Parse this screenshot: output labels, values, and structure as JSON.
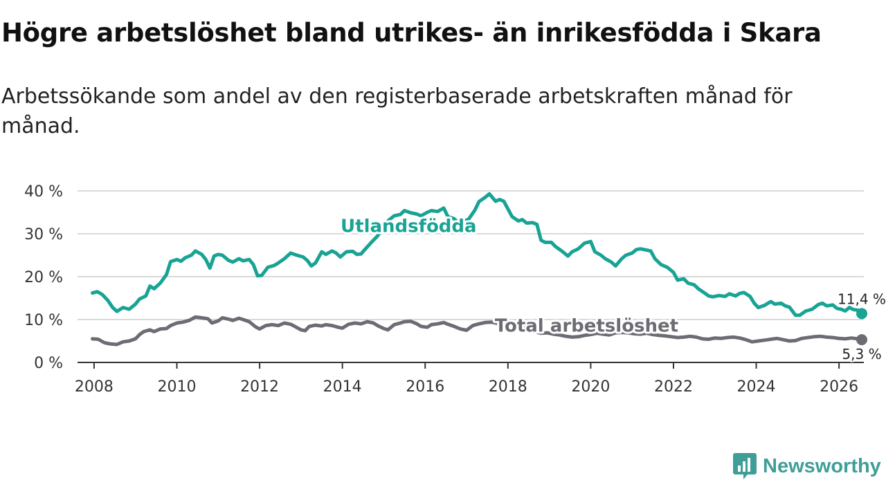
{
  "title": "Högre arbetslöshet bland utrikes- än inrikesfödda i Skara",
  "subtitle": "Arbetssökande som andel av den registerbaserade arbetskraften månad för månad.",
  "brand": {
    "name": "Newsworthy"
  },
  "colors": {
    "foreign_born": "#18a394",
    "total": "#6d6b73",
    "grid": "#d9d9d9",
    "axis": "#333333"
  },
  "chart_data": {
    "type": "line",
    "title": "Högre arbetslöshet bland utrikes- än inrikesfödda i Skara",
    "xlabel": "",
    "ylabel": "",
    "xlim": [
      2007.6,
      2026.6
    ],
    "ylim": [
      0,
      40
    ],
    "grid": true,
    "x_ticks": [
      2008,
      2010,
      2012,
      2014,
      2016,
      2018,
      2020,
      2022,
      2024,
      2026
    ],
    "x_tick_labels": [
      "2008",
      "2010",
      "2012",
      "2014",
      "2016",
      "2018",
      "2020",
      "2022",
      "2024",
      "2026"
    ],
    "y_ticks": [
      0,
      10,
      20,
      30,
      40
    ],
    "y_tick_labels": [
      "0 %",
      "10 %",
      "20 %",
      "30 %",
      "40 %"
    ],
    "series": [
      {
        "name": "Utlandsfödda",
        "color": "#18a394",
        "end_label": "11,4 %",
        "points": [
          [
            2007.96,
            16.2
          ],
          [
            2008.08,
            16.5
          ],
          [
            2008.2,
            15.8
          ],
          [
            2008.33,
            14.5
          ],
          [
            2008.45,
            12.8
          ],
          [
            2008.55,
            11.9
          ],
          [
            2008.7,
            12.8
          ],
          [
            2008.85,
            12.4
          ],
          [
            2009.0,
            13.6
          ],
          [
            2009.1,
            14.8
          ],
          [
            2009.25,
            15.5
          ],
          [
            2009.35,
            17.8
          ],
          [
            2009.45,
            17.2
          ],
          [
            2009.6,
            18.5
          ],
          [
            2009.75,
            20.5
          ],
          [
            2009.85,
            23.5
          ],
          [
            2010.0,
            24.0
          ],
          [
            2010.1,
            23.6
          ],
          [
            2010.2,
            24.4
          ],
          [
            2010.35,
            25.0
          ],
          [
            2010.45,
            26.0
          ],
          [
            2010.6,
            25.2
          ],
          [
            2010.7,
            24.0
          ],
          [
            2010.8,
            22.0
          ],
          [
            2010.9,
            24.8
          ],
          [
            2011.0,
            25.2
          ],
          [
            2011.1,
            25.0
          ],
          [
            2011.25,
            23.8
          ],
          [
            2011.35,
            23.4
          ],
          [
            2011.5,
            24.2
          ],
          [
            2011.6,
            23.7
          ],
          [
            2011.75,
            24.0
          ],
          [
            2011.85,
            22.8
          ],
          [
            2011.95,
            20.2
          ],
          [
            2012.05,
            20.3
          ],
          [
            2012.2,
            22.2
          ],
          [
            2012.35,
            22.6
          ],
          [
            2012.45,
            23.2
          ],
          [
            2012.6,
            24.2
          ],
          [
            2012.75,
            25.5
          ],
          [
            2012.9,
            25.0
          ],
          [
            2013.05,
            24.6
          ],
          [
            2013.15,
            23.8
          ],
          [
            2013.25,
            22.5
          ],
          [
            2013.35,
            23.2
          ],
          [
            2013.5,
            25.8
          ],
          [
            2013.6,
            25.2
          ],
          [
            2013.75,
            26.0
          ],
          [
            2013.85,
            25.5
          ],
          [
            2013.95,
            24.6
          ],
          [
            2014.1,
            25.8
          ],
          [
            2014.25,
            25.9
          ],
          [
            2014.35,
            25.2
          ],
          [
            2014.45,
            25.3
          ],
          [
            2014.55,
            26.4
          ],
          [
            2014.7,
            28.0
          ],
          [
            2014.85,
            29.5
          ],
          [
            2015.0,
            31.5
          ],
          [
            2015.1,
            33.0
          ],
          [
            2015.25,
            34.2
          ],
          [
            2015.4,
            34.5
          ],
          [
            2015.5,
            35.4
          ],
          [
            2015.65,
            34.9
          ],
          [
            2015.8,
            34.6
          ],
          [
            2015.9,
            34.2
          ],
          [
            2016.05,
            35.0
          ],
          [
            2016.15,
            35.4
          ],
          [
            2016.3,
            35.2
          ],
          [
            2016.45,
            36.0
          ],
          [
            2016.55,
            34.0
          ],
          [
            2016.7,
            33.5
          ],
          [
            2016.8,
            32.6
          ],
          [
            2016.95,
            33.0
          ],
          [
            2017.05,
            33.4
          ],
          [
            2017.2,
            35.5
          ],
          [
            2017.3,
            37.5
          ],
          [
            2017.45,
            38.5
          ],
          [
            2017.55,
            39.3
          ],
          [
            2017.7,
            37.6
          ],
          [
            2017.8,
            38.0
          ],
          [
            2017.9,
            37.6
          ],
          [
            2018.0,
            35.8
          ],
          [
            2018.1,
            34.0
          ],
          [
            2018.25,
            33.0
          ],
          [
            2018.35,
            33.3
          ],
          [
            2018.45,
            32.5
          ],
          [
            2018.6,
            32.6
          ],
          [
            2018.7,
            32.2
          ],
          [
            2018.8,
            28.5
          ],
          [
            2018.9,
            28.0
          ],
          [
            2019.05,
            28.0
          ],
          [
            2019.15,
            27.0
          ],
          [
            2019.3,
            26.0
          ],
          [
            2019.45,
            24.8
          ],
          [
            2019.55,
            25.8
          ],
          [
            2019.7,
            26.5
          ],
          [
            2019.85,
            27.8
          ],
          [
            2020.0,
            28.2
          ],
          [
            2020.1,
            25.8
          ],
          [
            2020.25,
            25.0
          ],
          [
            2020.35,
            24.2
          ],
          [
            2020.5,
            23.4
          ],
          [
            2020.6,
            22.5
          ],
          [
            2020.75,
            24.2
          ],
          [
            2020.85,
            25.0
          ],
          [
            2021.0,
            25.5
          ],
          [
            2021.1,
            26.3
          ],
          [
            2021.2,
            26.5
          ],
          [
            2021.35,
            26.2
          ],
          [
            2021.45,
            26.0
          ],
          [
            2021.55,
            24.2
          ],
          [
            2021.7,
            22.8
          ],
          [
            2021.85,
            22.2
          ],
          [
            2022.0,
            21.0
          ],
          [
            2022.1,
            19.2
          ],
          [
            2022.25,
            19.5
          ],
          [
            2022.35,
            18.5
          ],
          [
            2022.5,
            18.1
          ],
          [
            2022.6,
            17.2
          ],
          [
            2022.75,
            16.2
          ],
          [
            2022.85,
            15.5
          ],
          [
            2022.95,
            15.3
          ],
          [
            2023.1,
            15.6
          ],
          [
            2023.25,
            15.4
          ],
          [
            2023.35,
            16.0
          ],
          [
            2023.5,
            15.5
          ],
          [
            2023.6,
            16.1
          ],
          [
            2023.7,
            16.3
          ],
          [
            2023.85,
            15.4
          ],
          [
            2023.95,
            13.8
          ],
          [
            2024.05,
            12.8
          ],
          [
            2024.2,
            13.3
          ],
          [
            2024.35,
            14.2
          ],
          [
            2024.45,
            13.6
          ],
          [
            2024.6,
            13.8
          ],
          [
            2024.7,
            13.2
          ],
          [
            2024.8,
            12.9
          ],
          [
            2024.95,
            11.0
          ],
          [
            2025.05,
            11.0
          ],
          [
            2025.2,
            12.0
          ],
          [
            2025.35,
            12.4
          ],
          [
            2025.5,
            13.5
          ],
          [
            2025.6,
            13.8
          ],
          [
            2025.7,
            13.2
          ],
          [
            2025.85,
            13.4
          ],
          [
            2025.95,
            12.6
          ],
          [
            2026.05,
            12.4
          ],
          [
            2026.15,
            12.0
          ],
          [
            2026.25,
            12.8
          ],
          [
            2026.35,
            12.3
          ],
          [
            2026.45,
            12.2
          ],
          [
            2026.55,
            11.4
          ]
        ]
      },
      {
        "name": "Total arbetslöshet",
        "color": "#6d6b73",
        "end_label": "5,3 %",
        "points": [
          [
            2007.96,
            5.5
          ],
          [
            2008.1,
            5.4
          ],
          [
            2008.25,
            4.6
          ],
          [
            2008.4,
            4.3
          ],
          [
            2008.55,
            4.2
          ],
          [
            2008.7,
            4.8
          ],
          [
            2008.85,
            5.0
          ],
          [
            2009.0,
            5.5
          ],
          [
            2009.1,
            6.5
          ],
          [
            2009.2,
            7.2
          ],
          [
            2009.35,
            7.6
          ],
          [
            2009.45,
            7.2
          ],
          [
            2009.6,
            7.8
          ],
          [
            2009.75,
            7.9
          ],
          [
            2009.85,
            8.6
          ],
          [
            2010.0,
            9.2
          ],
          [
            2010.15,
            9.4
          ],
          [
            2010.3,
            9.8
          ],
          [
            2010.45,
            10.6
          ],
          [
            2010.6,
            10.4
          ],
          [
            2010.75,
            10.2
          ],
          [
            2010.85,
            9.2
          ],
          [
            2011.0,
            9.7
          ],
          [
            2011.1,
            10.4
          ],
          [
            2011.25,
            10.1
          ],
          [
            2011.35,
            9.8
          ],
          [
            2011.5,
            10.3
          ],
          [
            2011.6,
            10.0
          ],
          [
            2011.75,
            9.5
          ],
          [
            2011.9,
            8.3
          ],
          [
            2012.0,
            7.8
          ],
          [
            2012.15,
            8.6
          ],
          [
            2012.3,
            8.8
          ],
          [
            2012.45,
            8.6
          ],
          [
            2012.6,
            9.2
          ],
          [
            2012.75,
            8.9
          ],
          [
            2012.85,
            8.4
          ],
          [
            2013.0,
            7.6
          ],
          [
            2013.1,
            7.4
          ],
          [
            2013.2,
            8.4
          ],
          [
            2013.35,
            8.7
          ],
          [
            2013.5,
            8.5
          ],
          [
            2013.6,
            8.8
          ],
          [
            2013.75,
            8.6
          ],
          [
            2013.9,
            8.2
          ],
          [
            2014.0,
            8.0
          ],
          [
            2014.15,
            8.9
          ],
          [
            2014.3,
            9.2
          ],
          [
            2014.45,
            9.0
          ],
          [
            2014.6,
            9.5
          ],
          [
            2014.75,
            9.2
          ],
          [
            2014.85,
            8.6
          ],
          [
            2015.0,
            7.9
          ],
          [
            2015.1,
            7.6
          ],
          [
            2015.25,
            8.8
          ],
          [
            2015.4,
            9.2
          ],
          [
            2015.5,
            9.5
          ],
          [
            2015.65,
            9.6
          ],
          [
            2015.8,
            9.0
          ],
          [
            2015.9,
            8.4
          ],
          [
            2016.05,
            8.2
          ],
          [
            2016.15,
            8.8
          ],
          [
            2016.3,
            9.0
          ],
          [
            2016.45,
            9.3
          ],
          [
            2016.55,
            8.9
          ],
          [
            2016.7,
            8.4
          ],
          [
            2016.85,
            7.8
          ],
          [
            2017.0,
            7.5
          ],
          [
            2017.15,
            8.6
          ],
          [
            2017.3,
            9.0
          ],
          [
            2017.45,
            9.3
          ],
          [
            2017.6,
            9.4
          ],
          [
            2017.75,
            9.1
          ],
          [
            2017.9,
            8.0
          ],
          [
            2018.05,
            7.8
          ],
          [
            2018.2,
            8.2
          ],
          [
            2018.35,
            8.1
          ],
          [
            2018.5,
            7.8
          ],
          [
            2018.65,
            7.2
          ],
          [
            2018.8,
            6.8
          ],
          [
            2018.95,
            6.9
          ],
          [
            2019.1,
            6.6
          ],
          [
            2019.25,
            6.4
          ],
          [
            2019.4,
            6.1
          ],
          [
            2019.55,
            5.9
          ],
          [
            2019.7,
            6.0
          ],
          [
            2019.85,
            6.3
          ],
          [
            2020.0,
            6.5
          ],
          [
            2020.15,
            6.8
          ],
          [
            2020.3,
            6.6
          ],
          [
            2020.45,
            6.4
          ],
          [
            2020.6,
            6.9
          ],
          [
            2020.75,
            7.0
          ],
          [
            2020.9,
            6.9
          ],
          [
            2021.05,
            6.7
          ],
          [
            2021.2,
            6.6
          ],
          [
            2021.35,
            6.8
          ],
          [
            2021.5,
            6.5
          ],
          [
            2021.65,
            6.3
          ],
          [
            2021.8,
            6.2
          ],
          [
            2021.95,
            6.0
          ],
          [
            2022.1,
            5.8
          ],
          [
            2022.25,
            5.9
          ],
          [
            2022.4,
            6.1
          ],
          [
            2022.55,
            5.9
          ],
          [
            2022.7,
            5.5
          ],
          [
            2022.85,
            5.4
          ],
          [
            2023.0,
            5.7
          ],
          [
            2023.15,
            5.6
          ],
          [
            2023.3,
            5.8
          ],
          [
            2023.45,
            5.9
          ],
          [
            2023.6,
            5.7
          ],
          [
            2023.75,
            5.3
          ],
          [
            2023.9,
            4.8
          ],
          [
            2024.05,
            5.0
          ],
          [
            2024.2,
            5.2
          ],
          [
            2024.35,
            5.4
          ],
          [
            2024.5,
            5.6
          ],
          [
            2024.65,
            5.3
          ],
          [
            2024.8,
            5.0
          ],
          [
            2024.95,
            5.1
          ],
          [
            2025.1,
            5.6
          ],
          [
            2025.25,
            5.8
          ],
          [
            2025.4,
            6.0
          ],
          [
            2025.55,
            6.1
          ],
          [
            2025.7,
            5.9
          ],
          [
            2025.85,
            5.8
          ],
          [
            2026.0,
            5.6
          ],
          [
            2026.15,
            5.5
          ],
          [
            2026.3,
            5.7
          ],
          [
            2026.45,
            5.5
          ],
          [
            2026.55,
            5.3
          ]
        ]
      }
    ]
  }
}
